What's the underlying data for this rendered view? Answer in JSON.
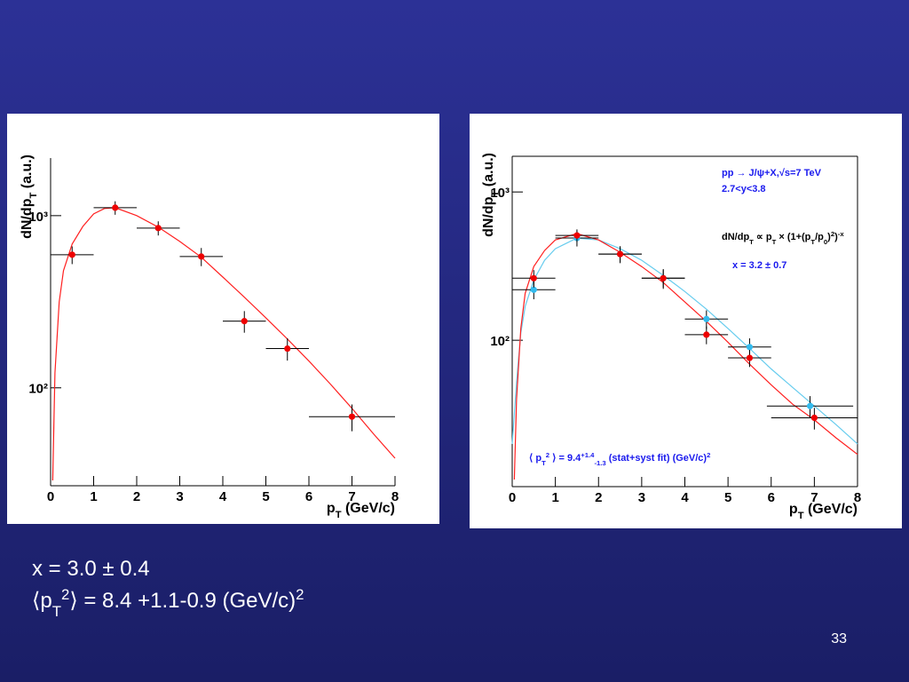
{
  "slide": {
    "lines": [
      [
        [
          "x = 3.0 ± 0.4",
          ""
        ]
      ],
      [
        [
          "⟨p",
          ""
        ],
        [
          "T",
          "sub"
        ],
        [
          "2",
          "sup"
        ],
        [
          "⟩ = 8.4 +1.1-0.9 (GeV/c)",
          ""
        ],
        [
          "2",
          "sup"
        ]
      ]
    ],
    "page_number": "33"
  },
  "chart_data": [
    {
      "type": "scatter",
      "frame": "axes",
      "log_y": true,
      "y_label": [
        [
          "dN/dp",
          ""
        ],
        [
          "T",
          "sub"
        ],
        [
          " (a.u.)",
          ""
        ]
      ],
      "x_label": [
        [
          "p",
          ""
        ],
        [
          "T",
          "sub"
        ],
        [
          " (GeV/c)",
          ""
        ]
      ],
      "xlim": [
        0,
        8
      ],
      "xticks": [
        0,
        1,
        2,
        3,
        4,
        5,
        6,
        7,
        8
      ],
      "ylim": [
        27,
        2160
      ],
      "yticks": [
        {
          "value": 100,
          "label": "10²"
        },
        {
          "value": 1000,
          "label": "10³"
        }
      ],
      "series": [
        {
          "kind": "line",
          "color": "#ff2020",
          "x": [
            0.05,
            0.1,
            0.2,
            0.3,
            0.5,
            0.75,
            1,
            1.25,
            1.5,
            2,
            2.5,
            3,
            3.5,
            4,
            4.5,
            5,
            5.5,
            6,
            6.5,
            7,
            7.5,
            8
          ],
          "values": [
            29,
            122,
            316,
            479,
            684,
            867,
            1024,
            1100,
            1112,
            1000,
            857,
            708,
            573,
            440,
            336,
            255,
            192,
            143,
            105,
            76,
            54,
            39
          ]
        },
        {
          "kind": "points",
          "color": "#ee0000",
          "x": [
            0.5,
            1.5,
            2.5,
            3.5,
            4.5,
            5.5,
            7
          ],
          "values": [
            593,
            1112,
            847,
            579,
            244,
            169,
            68
          ],
          "xerr": [
            0.5,
            0.5,
            0.5,
            0.5,
            0.5,
            0.5,
            1
          ],
          "yerr": [
            70,
            100,
            80,
            70,
            35,
            25,
            12
          ]
        }
      ]
    },
    {
      "type": "scatter",
      "frame": "box",
      "log_y": true,
      "y_label": [
        [
          "dN/dp",
          ""
        ],
        [
          "T",
          "sub"
        ],
        [
          " (a.u.)",
          ""
        ]
      ],
      "x_label": [
        [
          "p",
          ""
        ],
        [
          "T",
          "sub"
        ],
        [
          " (GeV/c)",
          ""
        ]
      ],
      "xlim": [
        0,
        8
      ],
      "xticks": [
        0,
        1,
        2,
        3,
        4,
        5,
        6,
        7,
        8
      ],
      "ylim": [
        10.3,
        1740
      ],
      "yticks": [
        {
          "value": 100,
          "label": "10²"
        },
        {
          "value": 1000,
          "label": "10³"
        }
      ],
      "annotations": [
        {
          "color": "#1a1aee",
          "parts": [
            [
              "pp → J/ψ+X,√s=7 TeV",
              ""
            ]
          ]
        },
        {
          "color": "#1a1aee",
          "parts": [
            [
              "2.7<y<3.8",
              ""
            ]
          ]
        },
        {
          "color": "#000000",
          "parts": [
            [
              "dN/dp",
              ""
            ],
            [
              "T",
              "sub"
            ],
            [
              " ∝ p",
              ""
            ],
            [
              "T",
              "sub"
            ],
            [
              " × (1+(p",
              ""
            ],
            [
              "T",
              "sub"
            ],
            [
              "/p",
              ""
            ],
            [
              "0",
              "sub"
            ],
            [
              ")",
              ""
            ],
            [
              "2",
              "sup"
            ],
            [
              ")",
              ""
            ],
            [
              "-x",
              "sup"
            ]
          ]
        },
        {
          "color": "#1a1aee",
          "parts": [
            [
              "x = 3.2 ± 0.7",
              ""
            ]
          ]
        },
        {
          "color": "#1a1aee",
          "parts": [
            [
              "⟨ p",
              ""
            ],
            [
              "T",
              "sub"
            ],
            [
              "2",
              "sup"
            ],
            [
              " ⟩ = 9.4",
              ""
            ],
            [
              "+1.4",
              "sup"
            ],
            [
              "-1.3",
              "sub"
            ],
            [
              " (stat+syst fit) (GeV/c)",
              ""
            ],
            [
              "2",
              "sup"
            ]
          ]
        }
      ],
      "series": [
        {
          "kind": "line",
          "color": "#66ccee",
          "x": [
            0,
            0.1,
            0.2,
            0.3,
            0.5,
            0.75,
            1,
            1.5,
            2,
            2.5,
            3,
            3.5,
            4,
            4.5,
            5,
            5.5,
            6,
            6.5,
            7,
            7.5,
            8
          ],
          "values": [
            20,
            52,
            112,
            169,
            255,
            346,
            414,
            489,
            475,
            414,
            346,
            274,
            213,
            162,
            120,
            88,
            64,
            48,
            36,
            27,
            20
          ]
        },
        {
          "kind": "line",
          "color": "#ff2020",
          "x": [
            0.05,
            0.1,
            0.2,
            0.3,
            0.5,
            0.75,
            1,
            1.5,
            2,
            2.5,
            3,
            3.5,
            4,
            4.5,
            5,
            5.5,
            6,
            6.5,
            7,
            7.5,
            8
          ],
          "values": [
            11.5,
            40,
            120,
            207,
            314,
            403,
            475,
            524,
            475,
            392,
            314,
            245,
            181,
            134,
            97,
            69,
            50,
            37,
            29,
            22,
            17
          ]
        },
        {
          "kind": "points",
          "color": "#33bbee",
          "x": [
            0.5,
            1.5,
            2.5,
            3.5,
            4.5,
            5.5,
            6.9
          ],
          "values": [
            219,
            489,
            381,
            262,
            139,
            90,
            36
          ],
          "xerr": [
            0.5,
            0.5,
            0.5,
            0.5,
            0.5,
            0.5,
            1
          ],
          "yerr": [
            30,
            60,
            50,
            40,
            20,
            13,
            6
          ]
        },
        {
          "kind": "points",
          "color": "#ee0000",
          "x": [
            0.5,
            1.5,
            2.5,
            3.5,
            4.5,
            5.5,
            7
          ],
          "values": [
            262,
            509,
            381,
            262,
            109,
            76,
            30
          ],
          "xerr": [
            0.5,
            0.5,
            0.5,
            0.5,
            0.5,
            0.5,
            1
          ],
          "yerr": [
            35,
            50,
            45,
            35,
            15,
            10,
            5
          ]
        }
      ]
    }
  ]
}
